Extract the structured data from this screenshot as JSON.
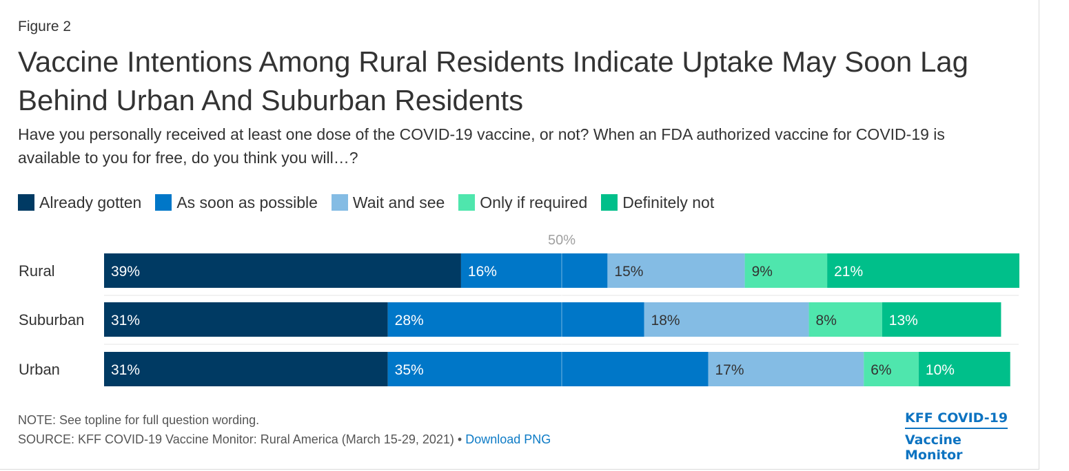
{
  "figure_label": "Figure 2",
  "title": "Vaccine Intentions Among Rural Residents Indicate Uptake May Soon Lag Behind Urban And Suburban Residents",
  "subtitle": "Have you personally received at least one dose of the COVID-19 vaccine, or not? When an FDA authorized vaccine for COVID-19 is available to you for free, do you think you will…?",
  "legend": [
    {
      "label": "Already gotten",
      "color": "#003a63"
    },
    {
      "label": "As soon as possible",
      "color": "#0077c8"
    },
    {
      "label": "Wait and see",
      "color": "#84bce4"
    },
    {
      "label": "Only if required",
      "color": "#4fe6ad"
    },
    {
      "label": "Definitely not",
      "color": "#00bf8a"
    }
  ],
  "chart_data": {
    "type": "bar",
    "orientation": "horizontal",
    "stacked": true,
    "categories": [
      "Rural",
      "Suburban",
      "Urban"
    ],
    "series": [
      {
        "name": "Already gotten",
        "color": "#003a63",
        "values": [
          39,
          31,
          31
        ],
        "labels": [
          "39%",
          "31%",
          "31%"
        ],
        "label_color": "#ffffff"
      },
      {
        "name": "As soon as possible",
        "color": "#0077c8",
        "values": [
          16,
          28,
          35
        ],
        "labels": [
          "16%",
          "28%",
          "35%"
        ],
        "label_color": "#ffffff"
      },
      {
        "name": "Wait and see",
        "color": "#84bce4",
        "values": [
          15,
          18,
          17
        ],
        "labels": [
          "15%",
          "18%",
          "17%"
        ],
        "label_color": "#333333"
      },
      {
        "name": "Only if required",
        "color": "#4fe6ad",
        "values": [
          9,
          8,
          6
        ],
        "labels": [
          "9%",
          "8%",
          "6%"
        ],
        "label_color": "#333333"
      },
      {
        "name": "Definitely not",
        "color": "#00bf8a",
        "values": [
          21,
          13,
          10
        ],
        "labels": [
          "21%",
          "13%",
          "10%"
        ],
        "label_color": "#ffffff"
      }
    ],
    "reference_line": {
      "value": 50,
      "label": "50%"
    },
    "xlim": [
      0,
      100
    ],
    "legend_position": "top-left"
  },
  "note": "NOTE: See topline for full question wording.",
  "source": "SOURCE: KFF COVID-19 Vaccine Monitor: Rural America (March 15-29, 2021) •",
  "download_link": "Download PNG",
  "brand": {
    "line1": "KFF COVID-19",
    "line2": "Vaccine Monitor"
  }
}
